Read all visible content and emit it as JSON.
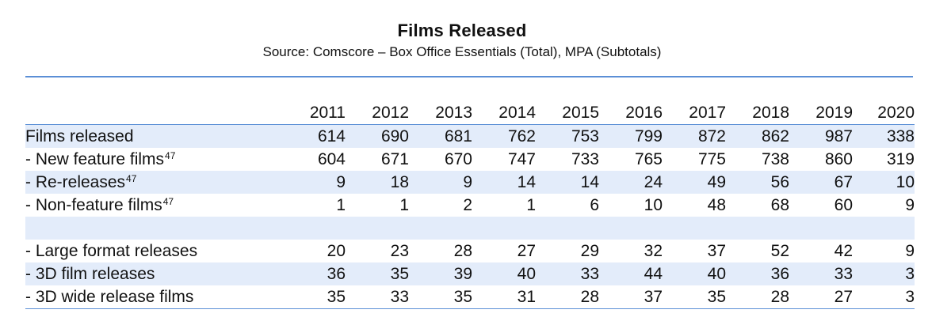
{
  "title": "Films Released",
  "subtitle": "Source: Comscore – Box Office Essentials (Total), MPA (Subtotals)",
  "years": [
    "2011",
    "2012",
    "2013",
    "2014",
    "2015",
    "2016",
    "2017",
    "2018",
    "2019",
    "2020"
  ],
  "rows": [
    {
      "label": "Films released",
      "footnote": "",
      "values": [
        "614",
        "690",
        "681",
        "762",
        "753",
        "799",
        "872",
        "862",
        "987",
        "338"
      ],
      "shaded": true
    },
    {
      "label": "- New feature films",
      "footnote": "47",
      "values": [
        "604",
        "671",
        "670",
        "747",
        "733",
        "765",
        "775",
        "738",
        "860",
        "319"
      ],
      "shaded": false
    },
    {
      "label": "- Re-releases",
      "footnote": "47",
      "values": [
        "9",
        "18",
        "9",
        "14",
        "14",
        "24",
        "49",
        "56",
        "67",
        "10"
      ],
      "shaded": true
    },
    {
      "label": "- Non-feature films",
      "footnote": "47",
      "values": [
        "1",
        "1",
        "2",
        "1",
        "6",
        "10",
        "48",
        "68",
        "60",
        "9"
      ],
      "shaded": false
    },
    {
      "label": "",
      "footnote": "",
      "values": [
        "",
        "",
        "",
        "",
        "",
        "",
        "",
        "",
        "",
        ""
      ],
      "shaded": true
    },
    {
      "label": "- Large format releases",
      "footnote": "",
      "values": [
        "20",
        "23",
        "28",
        "27",
        "29",
        "32",
        "37",
        "52",
        "42",
        "9"
      ],
      "shaded": false
    },
    {
      "label": "- 3D film releases",
      "footnote": "",
      "values": [
        "36",
        "35",
        "39",
        "40",
        "33",
        "44",
        "40",
        "36",
        "33",
        "3"
      ],
      "shaded": true
    },
    {
      "label": "- 3D wide release films",
      "footnote": "",
      "values": [
        "35",
        "33",
        "35",
        "31",
        "28",
        "37",
        "35",
        "28",
        "27",
        "3"
      ],
      "shaded": false
    }
  ],
  "colors": {
    "accent_rule": "#5b8fd6",
    "row_shade": "#e3ecfa"
  }
}
